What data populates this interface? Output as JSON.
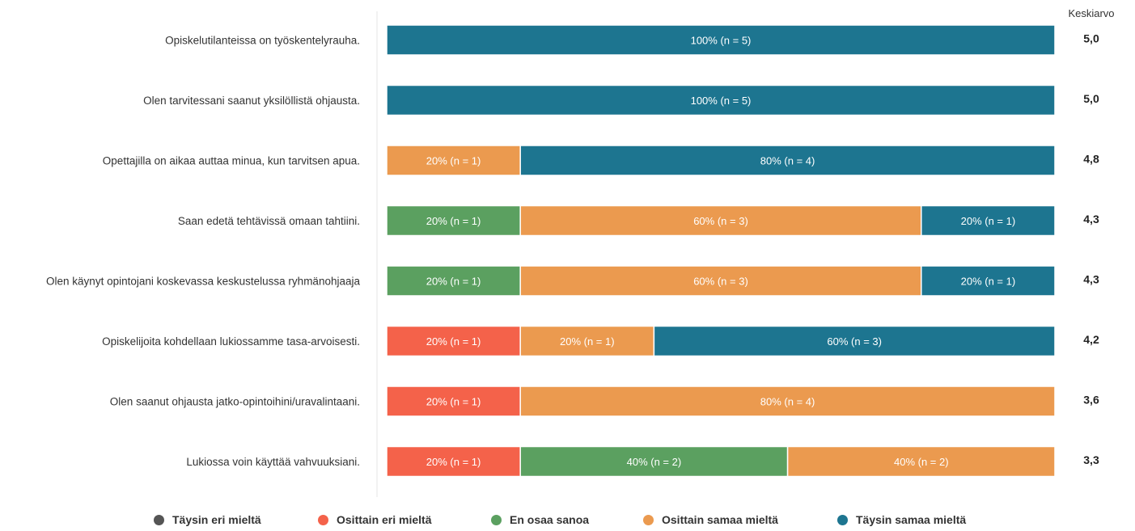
{
  "chart_data": {
    "type": "bar",
    "orientation": "horizontal",
    "stacked": "percent",
    "mean_header": "Keskiarvo",
    "categories": [
      "Opiskelutilanteissa on työskentelyrauha.",
      "Olen tarvitessani saanut yksilöllistä ohjausta.",
      "Opettajilla on aikaa auttaa minua, kun tarvitsen apua.",
      "Saan edetä tehtävissä omaan tahtiini.",
      "Olen käynyt opintojani koskevassa keskustelussa ryhmänohjaaja",
      "Opiskelijoita kohdellaan lukiossamme tasa-arvoisesti.",
      "Olen saanut ohjausta jatko-opintoihini/uravalintaani.",
      "Lukiossa voin käyttää vahvuuksiani."
    ],
    "series": [
      {
        "name": "Täysin eri mieltä",
        "color": "#555555",
        "values": [
          0,
          0,
          0,
          0,
          0,
          0,
          0,
          0
        ]
      },
      {
        "name": "Osittain eri mieltä",
        "color": "#f4624a",
        "values": [
          0,
          0,
          0,
          0,
          0,
          20,
          20,
          20
        ]
      },
      {
        "name": "En osaa sanoa",
        "color": "#5ba060",
        "values": [
          0,
          0,
          0,
          20,
          20,
          0,
          0,
          40
        ]
      },
      {
        "name": "Osittain samaa mieltä",
        "color": "#eb9a4f",
        "values": [
          0,
          0,
          20,
          60,
          60,
          20,
          80,
          40
        ]
      },
      {
        "name": "Täysin samaa mieltä",
        "color": "#1d7590",
        "values": [
          100,
          100,
          80,
          20,
          20,
          60,
          0,
          0
        ]
      }
    ],
    "segment_labels": [
      [
        "",
        "",
        "",
        "",
        "100% (n = 5)"
      ],
      [
        "",
        "",
        "",
        "",
        "100% (n = 5)"
      ],
      [
        "",
        "",
        "",
        "20% (n = 1)",
        "80% (n = 4)"
      ],
      [
        "",
        "",
        "20% (n = 1)",
        "60% (n = 3)",
        "20% (n = 1)"
      ],
      [
        "",
        "",
        "20% (n = 1)",
        "60% (n = 3)",
        "20% (n = 1)"
      ],
      [
        "",
        "20% (n = 1)",
        "",
        "20% (n = 1)",
        "60% (n = 3)"
      ],
      [
        "",
        "20% (n = 1)",
        "",
        "80% (n = 4)",
        ""
      ],
      [
        "",
        "20% (n = 1)",
        "40% (n = 2)",
        "40% (n = 2)",
        ""
      ]
    ],
    "means": [
      "5,0",
      "5,0",
      "4,8",
      "4,3",
      "4,3",
      "4,2",
      "3,6",
      "3,3"
    ],
    "xlim": [
      0,
      100
    ],
    "legend_position": "bottom"
  }
}
